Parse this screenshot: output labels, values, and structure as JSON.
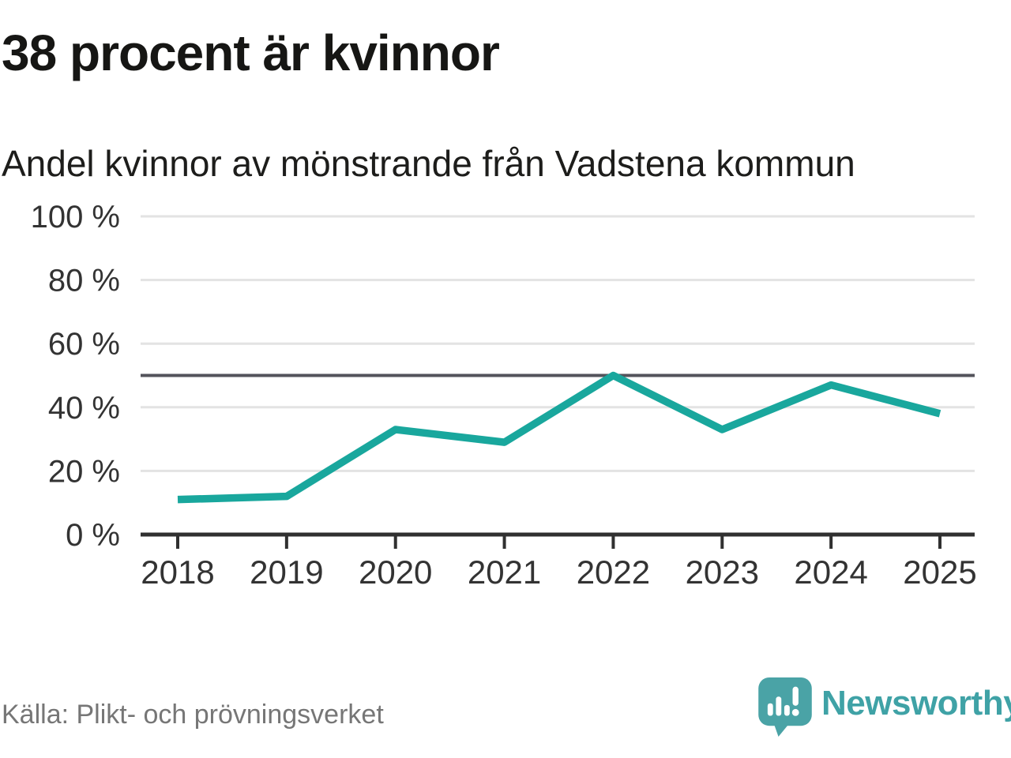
{
  "header": {
    "title": "38 procent är kvinnor",
    "subtitle": "Andel kvinnor av mönstrande från Vadstena kommun"
  },
  "footer": {
    "source": "Källa: Plikt- och prövningsverket",
    "brand_name": "Newsworthy"
  },
  "colors": {
    "line": "#19a79d",
    "grid": "#e3e3e3",
    "reference_line": "#53535b",
    "axis": "#303030",
    "tick_text": "#333333",
    "brand_teal": "#4aa3a6"
  },
  "chart_data": {
    "type": "line",
    "categories": [
      "2018",
      "2019",
      "2020",
      "2021",
      "2022",
      "2023",
      "2024",
      "2025"
    ],
    "series": [
      {
        "name": "Andel kvinnor av mönstrande",
        "values": [
          11,
          12,
          33,
          29,
          50,
          33,
          47,
          38
        ]
      }
    ],
    "title": "38 procent är kvinnor",
    "subtitle": "Andel kvinnor av mönstrande från Vadstena kommun",
    "xlabel": "",
    "ylabel": "",
    "ylim": [
      0,
      100
    ],
    "yticks": [
      0,
      20,
      40,
      60,
      80,
      100
    ],
    "ytick_suffix": " %",
    "reference_line": 50,
    "grid": true,
    "legend": "none"
  }
}
